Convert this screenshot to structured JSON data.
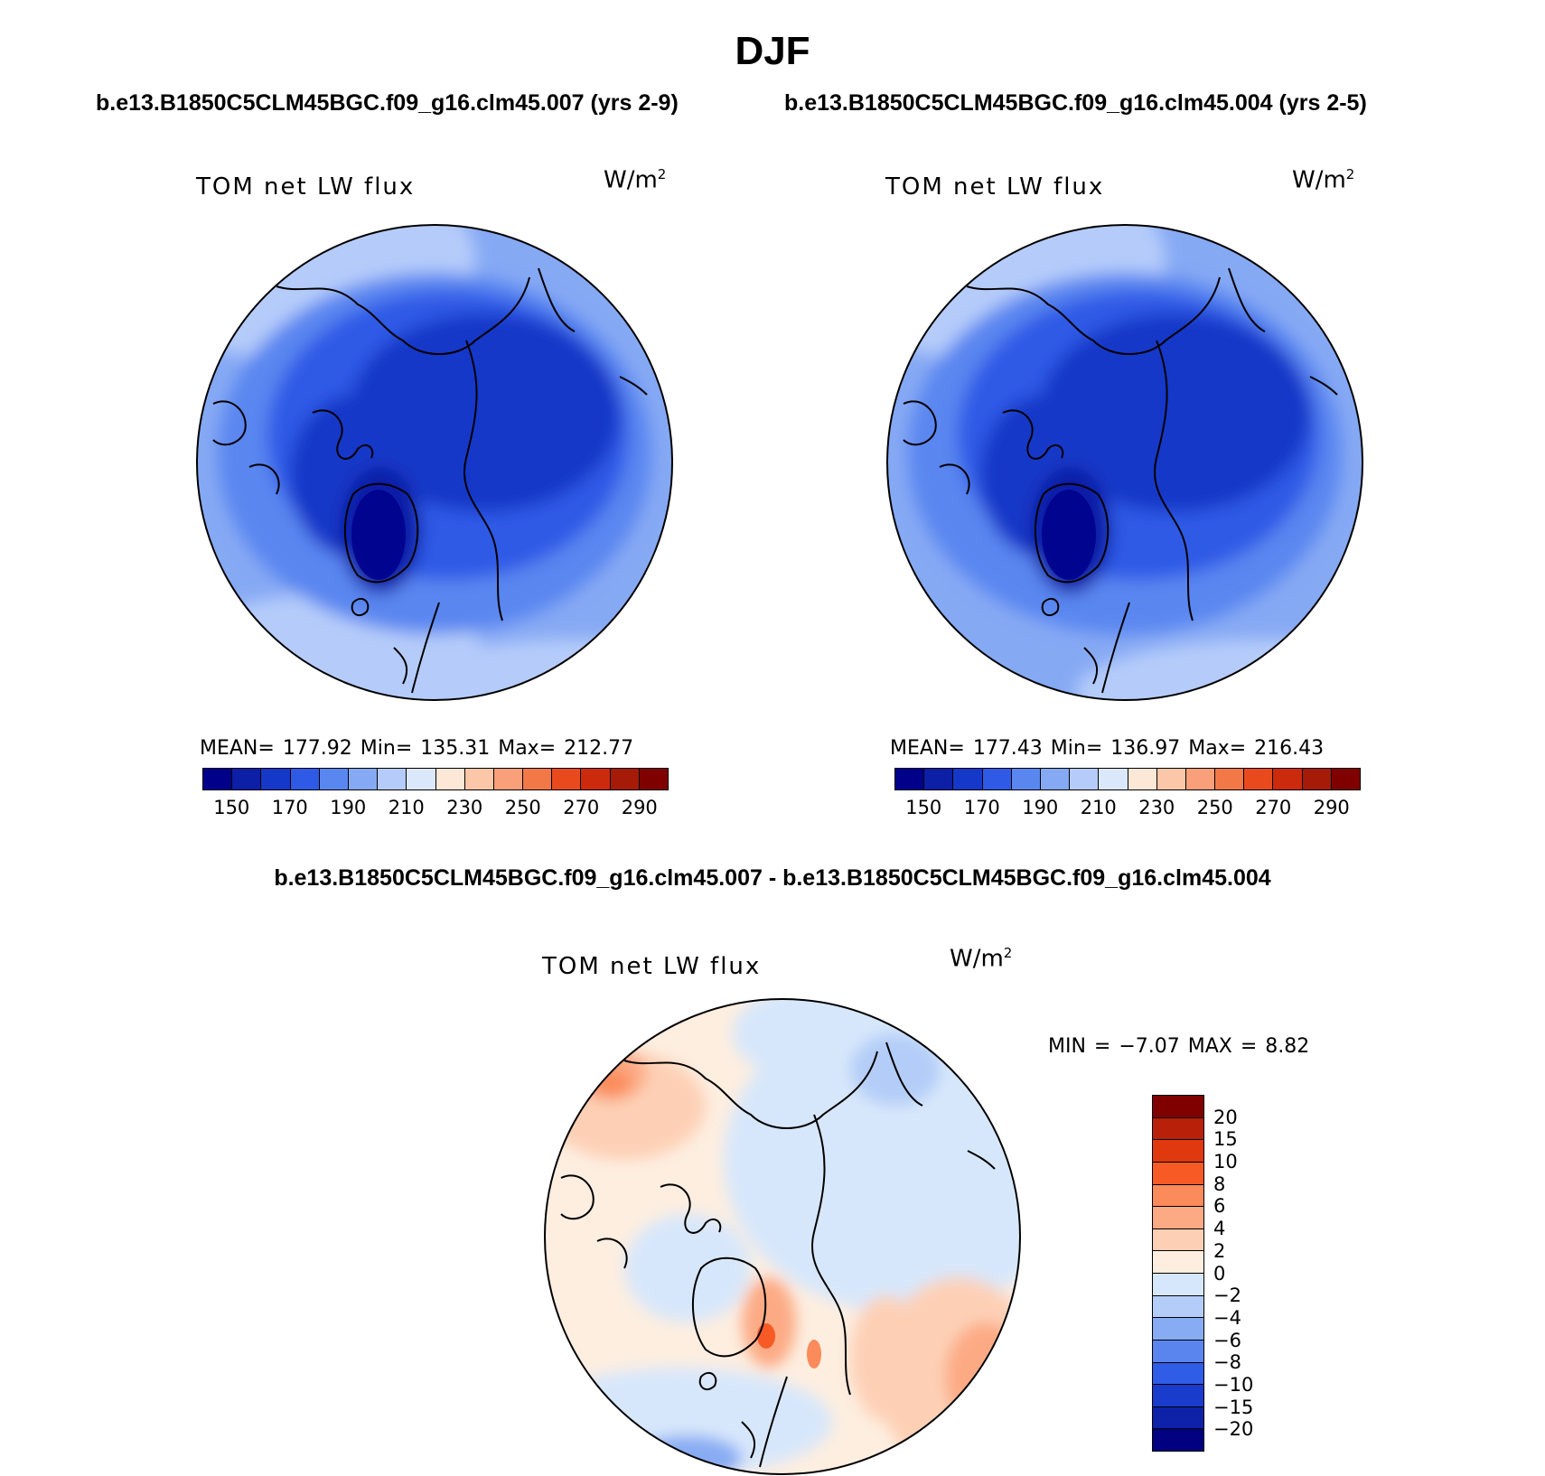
{
  "title": "DJF",
  "panels": [
    {
      "case": "b.e13.B1850C5CLM45BGC.f09_g16.clm45.007 (yrs 2-9)",
      "variable": "TOM  net  LW  flux",
      "units": "W/m",
      "units_sup": "2",
      "stats": "MEAN=  177.92   Min=  135.31   Max=  212.77"
    },
    {
      "case": "b.e13.B1850C5CLM45BGC.f09_g16.clm45.004 (yrs 2-5)",
      "variable": "TOM  net  LW  flux",
      "units": "W/m",
      "units_sup": "2",
      "stats": "MEAN=  177.43   Min=  136.97   Max=  216.43"
    }
  ],
  "colorbar": {
    "colors": [
      "#00008b",
      "#0c1fa6",
      "#1638c8",
      "#2e5ae6",
      "#5a86f0",
      "#86a9f4",
      "#b5ccfa",
      "#dbe8fc",
      "#fde7d6",
      "#fcc6a8",
      "#f9a07a",
      "#f27848",
      "#e84a1e",
      "#cc2a0c",
      "#a61a08",
      "#800000"
    ],
    "labels": [
      "150",
      "170",
      "190",
      "210",
      "230",
      "250",
      "270",
      "290"
    ]
  },
  "diff": {
    "title": "b.e13.B1850C5CLM45BGC.f09_g16.clm45.007 - b.e13.B1850C5CLM45BGC.f09_g16.clm45.004",
    "variable": "TOM  net  LW  flux",
    "units": "W/m",
    "units_sup": "2",
    "minmax": "MIN =    −7.07  MAX =      8.82",
    "colors": [
      "#800000",
      "#b8200a",
      "#e0380f",
      "#f85a26",
      "#fb8b5a",
      "#fcaa84",
      "#fdd0b6",
      "#fdeee0",
      "#d7e7fb",
      "#b3cdf8",
      "#88acf3",
      "#5b85ee",
      "#2f5de8",
      "#1a3ccc",
      "#0d22a8",
      "#000080"
    ],
    "labels": [
      "20",
      "15",
      "10",
      "8",
      "6",
      "4",
      "2",
      "0",
      "−2",
      "−4",
      "−6",
      "−8",
      "−10",
      "−15",
      "−20"
    ]
  }
}
